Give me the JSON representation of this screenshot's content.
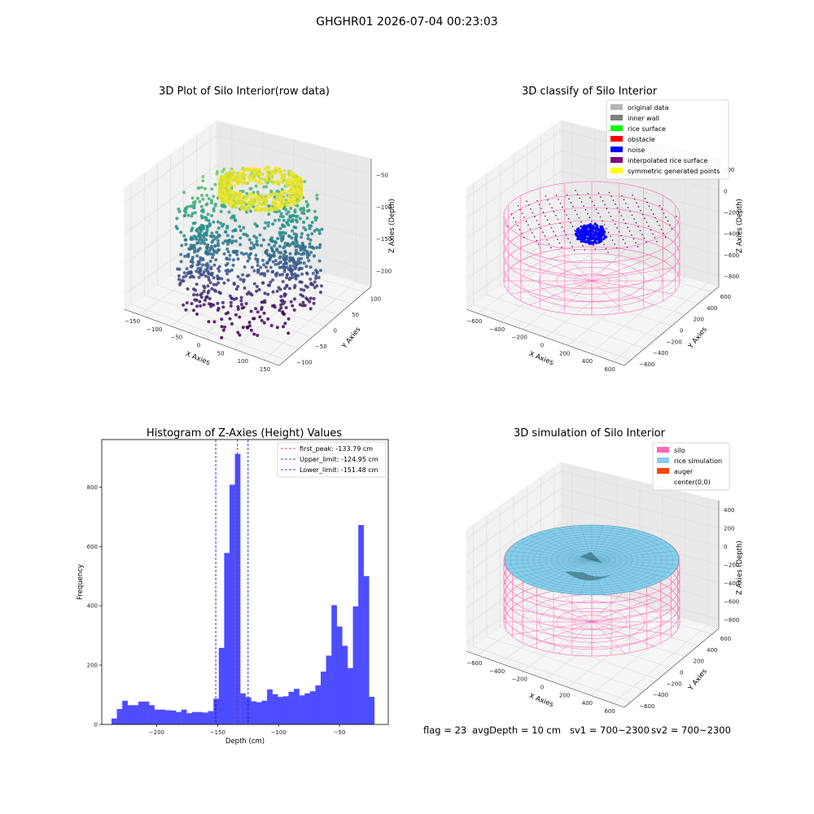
{
  "figure": {
    "suptitle": "GHGHR01 2026-07-04 00:23:03",
    "footer": {
      "flag": "flag = 23",
      "avg": "avgDepth = 10 cm",
      "sv1": "sv1 = 700~2300",
      "sv2": "sv2 = 700~2300"
    }
  },
  "chart_data": [
    {
      "type": "scatter",
      "title": "3D Plot of Silo Interior(row data)",
      "xlabel": "X Axies",
      "ylabel": "Y Axies",
      "zlabel": "Z Axies (Depth)",
      "x_ticks": [
        "−150",
        "−100",
        "−50",
        "0",
        "50",
        "100",
        "150"
      ],
      "y_ticks": [
        "−100",
        "−50",
        "0",
        "50",
        "100"
      ],
      "z_ticks": [
        "−50",
        "−100",
        "−150",
        "−200"
      ],
      "colormap": "viridis",
      "description_values": {
        "x_range": [
          -160,
          160
        ],
        "y_range": [
          -120,
          120
        ],
        "z_range": [
          -240,
          -20
        ]
      }
    },
    {
      "type": "scatter",
      "title": "3D classify of Silo Interior",
      "xlabel": "X Axies",
      "ylabel": "Y Axies",
      "zlabel": "Z Axies (Depth)",
      "x_ticks": [
        "−600",
        "−400",
        "−200",
        "0",
        "200",
        "400",
        "600"
      ],
      "y_ticks": [
        "−600",
        "−400",
        "−200",
        "0",
        "200",
        "400",
        "600"
      ],
      "z_ticks": [
        "200",
        "0",
        "−200",
        "−400",
        "−600",
        "−800"
      ],
      "legend": [
        {
          "label": "original data",
          "color": "#b3b3b3"
        },
        {
          "label": "inner wall",
          "color": "#808080"
        },
        {
          "label": "rice surface",
          "color": "#00ff00"
        },
        {
          "label": "obstacle",
          "color": "#ff0000"
        },
        {
          "label": "noise",
          "color": "#0000ff"
        },
        {
          "label": "interpolated rice surface",
          "color": "#800080"
        },
        {
          "label": "symmetric generated points",
          "color": "#ffff00"
        }
      ],
      "wire_color": "#ff69b4"
    },
    {
      "type": "bar",
      "title": "Histogram of Z-Axies (Height) Values",
      "xlabel": "Depth (cm)",
      "ylabel": "Frequency",
      "xlim": [
        -245,
        -10
      ],
      "ylim": [
        0,
        960
      ],
      "x_ticks": [
        -200,
        -150,
        -100,
        -50
      ],
      "x_tick_labels": [
        "−200",
        "−150",
        "−100",
        "−50"
      ],
      "y_ticks": [
        0,
        200,
        400,
        600,
        800
      ],
      "y_tick_labels": [
        "0",
        "200",
        "400",
        "600",
        "800"
      ],
      "bar_color": "#4d4dff",
      "bin_start": -237,
      "bin_width": 4.4,
      "values": [
        20,
        52,
        80,
        65,
        65,
        77,
        77,
        65,
        50,
        50,
        48,
        47,
        42,
        50,
        38,
        42,
        42,
        40,
        45,
        87,
        258,
        578,
        808,
        912,
        105,
        92,
        78,
        75,
        80,
        118,
        102,
        93,
        95,
        110,
        120,
        98,
        105,
        112,
        132,
        178,
        232,
        402,
        330,
        265,
        190,
        398,
        672,
        500,
        93
      ],
      "vlines": [
        {
          "label": "first_peak: -133.79 cm",
          "x": -133.79,
          "color": "#ff0000"
        },
        {
          "label": "Upper_limit: -124.95 cm",
          "x": -124.95,
          "color": "#0000aa"
        },
        {
          "label": "Lower_limit: -151.48 cm",
          "x": -151.48,
          "color": "#0000aa"
        }
      ]
    },
    {
      "type": "surface",
      "title": "3D simulation of Silo Interior",
      "xlabel": "X Axies",
      "ylabel": "Y Axies",
      "zlabel": "Z Axies (Depth)",
      "x_ticks": [
        "−600",
        "−400",
        "−200",
        "0",
        "200",
        "400",
        "600"
      ],
      "y_ticks": [
        "−600",
        "−400",
        "−200",
        "0",
        "200",
        "400",
        "600"
      ],
      "z_ticks": [
        "400",
        "200",
        "0",
        "−200",
        "−400",
        "−600",
        "−800"
      ],
      "legend": [
        {
          "label": "silo",
          "color": "#ff69b4"
        },
        {
          "label": "rice simulation",
          "color": "#87ceeb"
        },
        {
          "label": "auger",
          "color": "#ff4500"
        },
        {
          "label": "center(0,0)",
          "color": "#ffffff"
        }
      ]
    }
  ]
}
